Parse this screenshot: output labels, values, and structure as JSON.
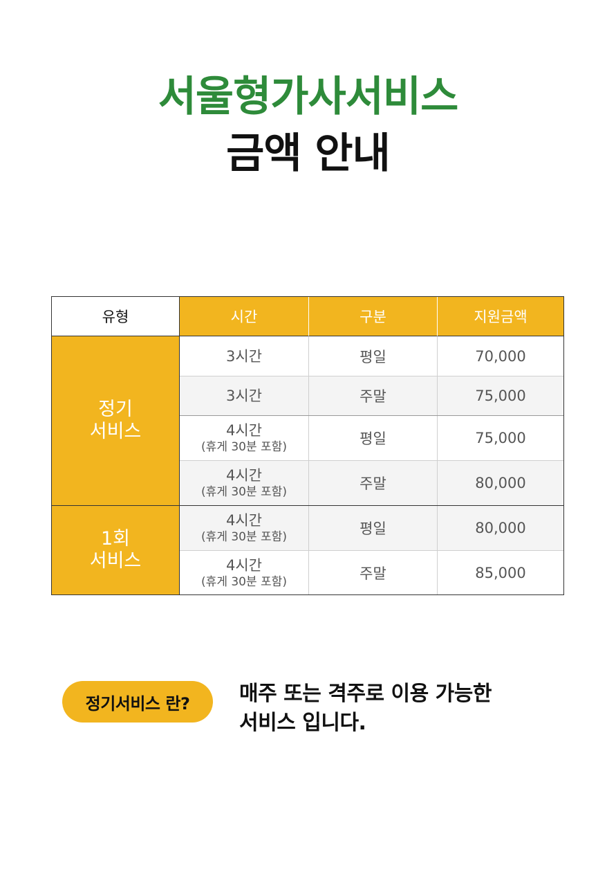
{
  "title": {
    "line1": "서울형가사서비스",
    "line2": "금액 안내"
  },
  "colors": {
    "title_green": "#2e8b3a",
    "accent_gold": "#f2b51f",
    "text_dark": "#111111",
    "text_grey": "#555555"
  },
  "table": {
    "headers": {
      "type": "유형",
      "time": "시간",
      "category": "구분",
      "amount": "지원금액"
    },
    "groups": [
      {
        "line1": "정기",
        "line2": "서비스"
      },
      {
        "line1": "1회",
        "line2": "서비스"
      }
    ],
    "rows": [
      {
        "time": "3시간",
        "note": "",
        "category": "평일",
        "amount": "70,000"
      },
      {
        "time": "3시간",
        "note": "",
        "category": "주말",
        "amount": "75,000"
      },
      {
        "time": "4시간",
        "note": "(휴게 30분 포함)",
        "category": "평일",
        "amount": "75,000"
      },
      {
        "time": "4시간",
        "note": "(휴게 30분 포함)",
        "category": "주말",
        "amount": "80,000"
      },
      {
        "time": "4시간",
        "note": "(휴게 30분 포함)",
        "category": "평일",
        "amount": "80,000"
      },
      {
        "time": "4시간",
        "note": "(휴게 30분 포함)",
        "category": "주말",
        "amount": "85,000"
      }
    ]
  },
  "footer": {
    "pill_label": "정기서비스 란?",
    "note_line1": "매주 또는 격주로 이용 가능한",
    "note_line2": "서비스 입니다."
  }
}
